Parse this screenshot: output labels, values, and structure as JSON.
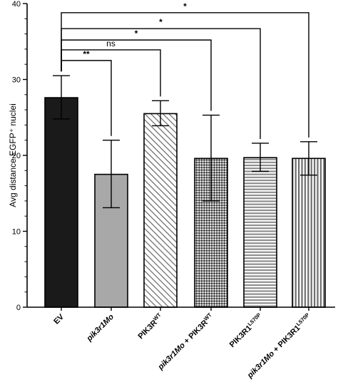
{
  "chart_data": {
    "type": "bar",
    "ylabel": "Avg distance EGFP⁺ nuclei",
    "ylim": [
      0,
      40
    ],
    "yticks": [
      "0",
      "10",
      "20",
      "30",
      "40"
    ],
    "categories": [
      {
        "label": "EV",
        "sup": "",
        "italic": false
      },
      {
        "label": "pik3r1Mo",
        "sup": "",
        "italic": true
      },
      {
        "label": "PIK3R",
        "sup": "WT",
        "italic": false
      },
      {
        "label": "pik3r1Mo + PIK3R",
        "sup": "WT",
        "italic": false
      },
      {
        "label": "PIK3R1",
        "sup": "L570P",
        "italic": false
      },
      {
        "label": "pik3r1Mo + PIK3R1",
        "sup": "L570P",
        "italic": true
      }
    ],
    "values": [
      27.6,
      17.5,
      25.5,
      19.6,
      19.7,
      19.6
    ],
    "error": [
      [
        24.8,
        30.5
      ],
      [
        13.1,
        22.0
      ],
      [
        23.9,
        27.2
      ],
      [
        14.0,
        25.3
      ],
      [
        17.9,
        21.6
      ],
      [
        17.4,
        21.8
      ]
    ],
    "fills": [
      "solid-black",
      "solid-gray",
      "diagonal-lines",
      "checker",
      "horizontal-lines",
      "vertical-lines"
    ],
    "significance": [
      {
        "from": 0,
        "to": 1,
        "label": "**",
        "level": 32.5
      },
      {
        "from": 0,
        "to": 2,
        "label": "ns",
        "level": 33.9
      },
      {
        "from": 0,
        "to": 3,
        "label": "*",
        "level": 35.2
      },
      {
        "from": 0,
        "to": 4,
        "label": "*",
        "level": 36.7
      },
      {
        "from": 0,
        "to": 5,
        "label": "*",
        "level": 38.8
      }
    ],
    "colors": {
      "black_bar": "#1a1a1a",
      "gray_bar": "#a8a8a8",
      "pattern_stroke": "#555555",
      "axis": "#000000"
    }
  }
}
